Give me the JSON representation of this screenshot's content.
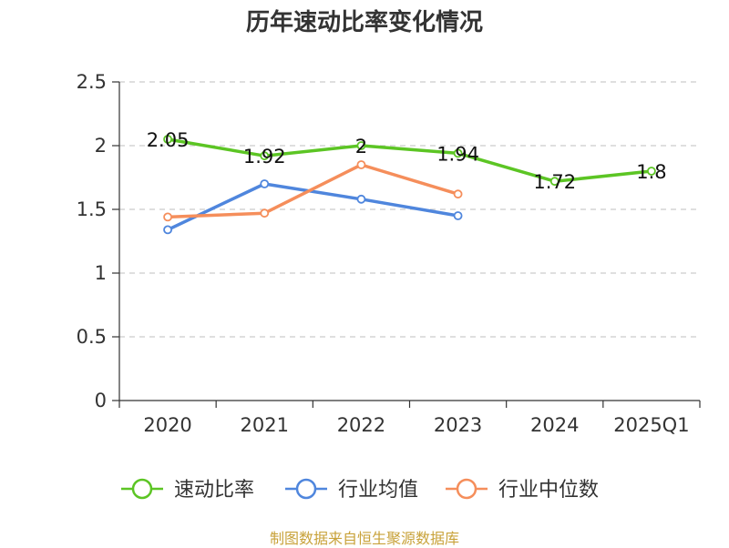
{
  "chart_data": {
    "type": "line",
    "title": "历年速动比率变化情况",
    "categories": [
      "2020",
      "2021",
      "2022",
      "2023",
      "2024",
      "2025Q1"
    ],
    "ylim": [
      0,
      2.5
    ],
    "yticks": [
      "0",
      "0.5",
      "1",
      "1.5",
      "2",
      "2.5"
    ],
    "grid": true,
    "legend_position": "bottom",
    "series": [
      {
        "name": "速动比率",
        "color": "#5cc524",
        "values": [
          2.05,
          1.92,
          2.0,
          1.94,
          1.72,
          1.8
        ],
        "labels": [
          "2.05",
          "1.92",
          "2",
          "1.94",
          "1.72",
          "1.8"
        ]
      },
      {
        "name": "行业均值",
        "color": "#4f86dd",
        "values": [
          1.34,
          1.7,
          1.58,
          1.45,
          null,
          null
        ]
      },
      {
        "name": "行业中位数",
        "color": "#f58e5b",
        "values": [
          1.44,
          1.47,
          1.85,
          1.62,
          null,
          null
        ]
      }
    ]
  },
  "source_note": "制图数据来自恒生聚源数据库"
}
